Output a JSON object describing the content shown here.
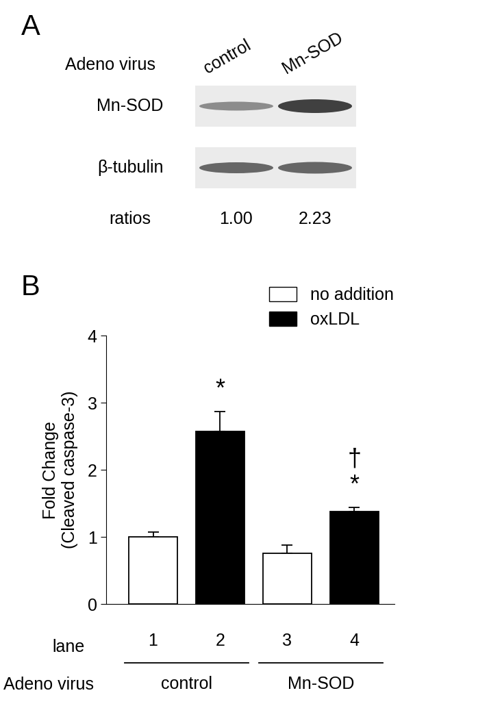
{
  "chart_data": {
    "type": "bar",
    "panel": "B",
    "y_label": "Fold Change\n(Cleaved caspase-3)",
    "x_label": "lane",
    "categories": [
      "1",
      "2",
      "3",
      "4"
    ],
    "series": [
      {
        "name": "no addition",
        "color": "#ffffff",
        "values": [
          1.0,
          null,
          0.76,
          null
        ],
        "errors": [
          0.07,
          null,
          0.12,
          null
        ]
      },
      {
        "name": "oxLDL",
        "color": "#000000",
        "values": [
          null,
          2.57,
          null,
          1.38
        ],
        "errors": [
          null,
          0.3,
          null,
          0.06
        ]
      }
    ],
    "groups_label": "Adeno virus",
    "groups": [
      {
        "label": "control",
        "categories": [
          "1",
          "2"
        ]
      },
      {
        "label": "Mn-SOD",
        "categories": [
          "3",
          "4"
        ]
      }
    ],
    "annotations": [
      {
        "category": "2",
        "text": "*"
      },
      {
        "category": "4",
        "text": "*"
      },
      {
        "category": "4",
        "text": "†"
      }
    ],
    "ylim": [
      0,
      4
    ],
    "yticks": [
      0,
      1,
      2,
      3,
      4
    ],
    "legend": "upper right",
    "grid": false
  },
  "blot": {
    "panel": "A",
    "row_header": "Adeno virus",
    "lanes": [
      "control",
      "Mn-SOD"
    ],
    "rows": [
      "Mn-SOD",
      "β-tubulin"
    ],
    "ratio_label": "ratios",
    "ratios": [
      "1.00",
      "2.23"
    ]
  }
}
